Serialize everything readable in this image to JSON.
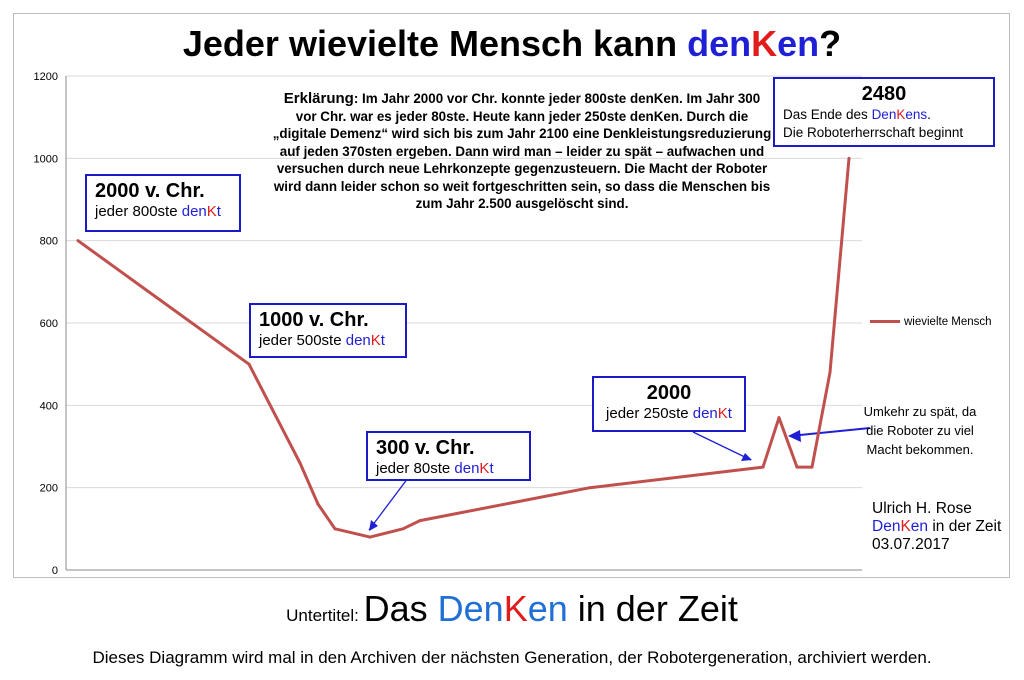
{
  "title": {
    "part1": "Jeder wievielte Mensch kann ",
    "den1": "den",
    "K": "K",
    "den2": "en",
    "q": "?"
  },
  "chart_data": {
    "type": "line",
    "title": "Jeder wievielte Mensch kann denKen?",
    "xlabel": "",
    "ylabel": "",
    "ylim": [
      0,
      1200
    ],
    "yticks": [
      0,
      200,
      400,
      600,
      800,
      1000,
      1200
    ],
    "grid": true,
    "legend_position": "right",
    "series": [
      {
        "name": "wievielte Mensch",
        "color": "#c0504d",
        "values": [
          800,
          500,
          260,
          160,
          100,
          80,
          100,
          120,
          200,
          250,
          370,
          250,
          250,
          480,
          1000
        ]
      }
    ]
  },
  "explanation": {
    "label": "Erklärung",
    "text": ": Im Jahr 2000 vor Chr. konnte jeder 800ste denKen. Im Jahr 300 vor Chr. war es jeder 80ste. Heute kann jeder 250ste denKen. Durch die „digitale Demenz“ wird sich bis zum Jahr 2100 eine Denkleistungsreduzierung auf jeden 370sten ergeben. Dann wird man – leider zu spät – aufwachen und versuchen durch neue Lehrkonzepte gegenzusteuern. Die Macht der Roboter wird dann leider schon so weit fortgeschritten sein, so dass die Menschen bis zum Jahr 2.500 ausgelöscht sind."
  },
  "annotations": {
    "a2000bc": {
      "head": "2000 v. Chr.",
      "pre": "jeder 800ste ",
      "den": "den",
      "K": "K",
      "t": "t"
    },
    "a1000bc": {
      "head": "1000 v. Chr.",
      "pre": "jeder 500ste ",
      "den": "den",
      "K": "K",
      "t": "t"
    },
    "a300bc": {
      "head": "300 v. Chr.",
      "pre": "jeder 80ste ",
      "den": "den",
      "K": "K",
      "t": "t"
    },
    "a2000": {
      "head": "2000",
      "pre": "jeder 250ste ",
      "den": "den",
      "K": "K",
      "t": "t"
    },
    "a2480": {
      "head": "2480",
      "line1_pre": "Das Ende des ",
      "den": "Den",
      "K": "K",
      "ens": "ens",
      "dot": ".",
      "line2": "Die Roboterherrschaft beginnt"
    }
  },
  "note": "Umkehr zu spät, da die Roboter zu viel Macht bekommen.",
  "author": {
    "name": "Ulrich H. Rose",
    "den": "Den",
    "K": "K",
    "en": "en",
    "rest": " in der Zeit",
    "date": "03.07.2017"
  },
  "subtitle": {
    "label": "Untertitel: ",
    "das": "Das ",
    "den": "Den",
    "K": "K",
    "en": "en",
    "rest": " in der Zeit"
  },
  "footer": "Dieses Diagramm wird mal in den Archiven der nächsten Generation, der Robotergeneration, archiviert werden.",
  "colors": {
    "blue": "#1f1fd6",
    "red": "#e21b1b",
    "line": "#c0504d",
    "box_border": "#1a1ac8",
    "grid": "#d9d9d9"
  }
}
